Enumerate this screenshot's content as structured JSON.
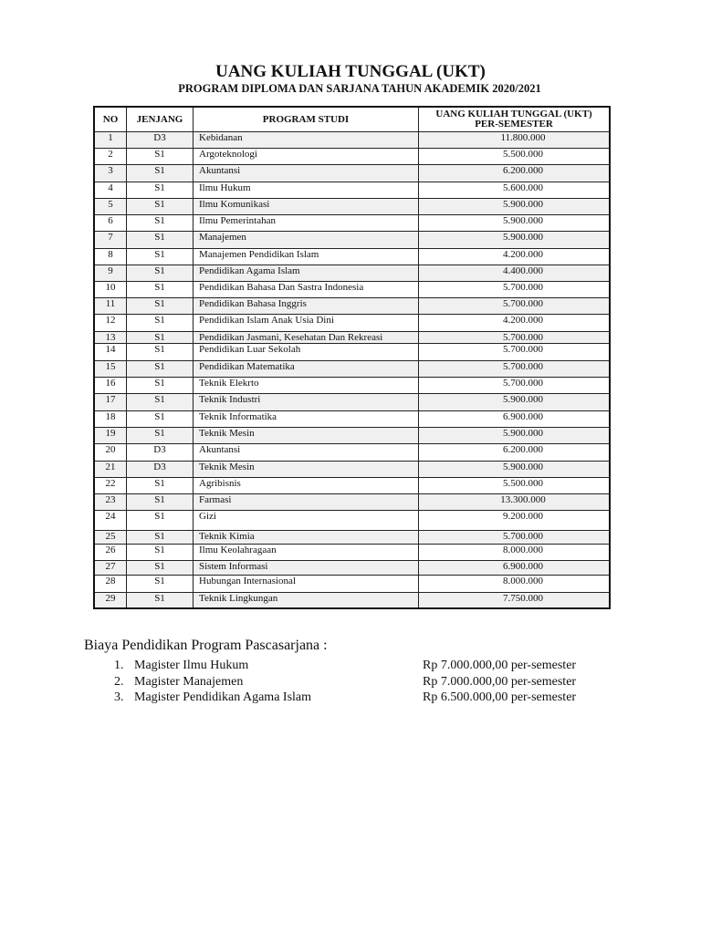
{
  "header": {
    "title": "UANG KULIAH TUNGGAL (UKT)",
    "subtitle": "PROGRAM  DIPLOMA DAN SARJANA TAHUN AKADEMIK 2020/2021"
  },
  "table": {
    "columns": [
      "NO",
      "JENJANG",
      "PROGRAM STUDI",
      "UANG KULIAH TUNGGAL (UKT)",
      "PER-SEMESTER"
    ],
    "rows": [
      [
        "1",
        "D3",
        "Kebidanan",
        "11.800.000"
      ],
      [
        "2",
        "S1",
        "Argoteknologi",
        "5.500.000"
      ],
      [
        "3",
        "S1",
        "Akuntansi",
        "6.200.000"
      ],
      [
        "4",
        "S1",
        "Ilmu Hukum",
        "5.600.000"
      ],
      [
        "5",
        "S1",
        "Ilmu Komunikasi",
        "5.900.000"
      ],
      [
        "6",
        "S1",
        "Ilmu Pemerintahan",
        "5.900.000"
      ],
      [
        "7",
        "S1",
        "Manajemen",
        "5.900.000"
      ],
      [
        "8",
        "S1",
        "Manajemen Pendidikan Islam",
        "4.200.000"
      ],
      [
        "9",
        "S1",
        "Pendidikan Agama Islam",
        "4.400.000"
      ],
      [
        "10",
        "S1",
        "Pendidikan Bahasa Dan Sastra Indonesia",
        "5.700.000"
      ],
      [
        "11",
        "S1",
        "Pendidikan Bahasa Inggris",
        "5.700.000"
      ],
      [
        "12",
        "S1",
        "Pendidikan Islam Anak Usia Dini",
        "4.200.000"
      ],
      [
        "13",
        "S1",
        "Pendidikan Jasmani, Kesehatan Dan Rekreasi",
        "5.700.000"
      ],
      [
        "14",
        "S1",
        "Pendidikan Luar Sekolah",
        "5.700.000"
      ],
      [
        "15",
        "S1",
        "Pendidikan Matematika",
        "5.700.000"
      ],
      [
        "16",
        "S1",
        "Teknik Elekrto",
        "5.700.000"
      ],
      [
        "17",
        "S1",
        "Teknik Industri",
        "5.900.000"
      ],
      [
        "18",
        "S1",
        "Teknik Informatika",
        "6.900.000"
      ],
      [
        "19",
        "S1",
        "Teknik Mesin",
        "5.900.000"
      ],
      [
        "20",
        "D3",
        "Akuntansi",
        "6.200.000"
      ],
      [
        "21",
        "D3",
        "Teknik Mesin",
        "5.900.000"
      ],
      [
        "22",
        "S1",
        "Agribisnis",
        "5.500.000"
      ],
      [
        "23",
        "S1",
        "Farmasi",
        "13.300.000"
      ],
      [
        "24",
        "S1",
        "Gizi",
        "9.200.000"
      ],
      [
        "25",
        "S1",
        "Teknik Kimia",
        "5.700.000"
      ],
      [
        "26",
        "S1",
        "Ilmu Keolahragaan",
        "8.000.000"
      ],
      [
        "27",
        "S1",
        "Sistem Informasi",
        "6.900.000"
      ],
      [
        "28",
        "S1",
        "Hubungan Internasional",
        "8.000.000"
      ],
      [
        "29",
        "S1",
        "Teknik Lingkungan",
        "7.750.000"
      ]
    ]
  },
  "pascasarjana": {
    "title": "Biaya Pendidikan Program Pascasarjana :",
    "items": [
      {
        "num": "1.",
        "name": "Magister Ilmu Hukum",
        "price": "Rp 7.000.000,00 per-semester"
      },
      {
        "num": "2.",
        "name": "Magister Manajemen",
        "price": "Rp 7.000.000,00 per-semester"
      },
      {
        "num": "3.",
        "name": "Magister Pendidikan Agama Islam",
        "price": "Rp 6.500.000,00 per-semester"
      }
    ]
  }
}
